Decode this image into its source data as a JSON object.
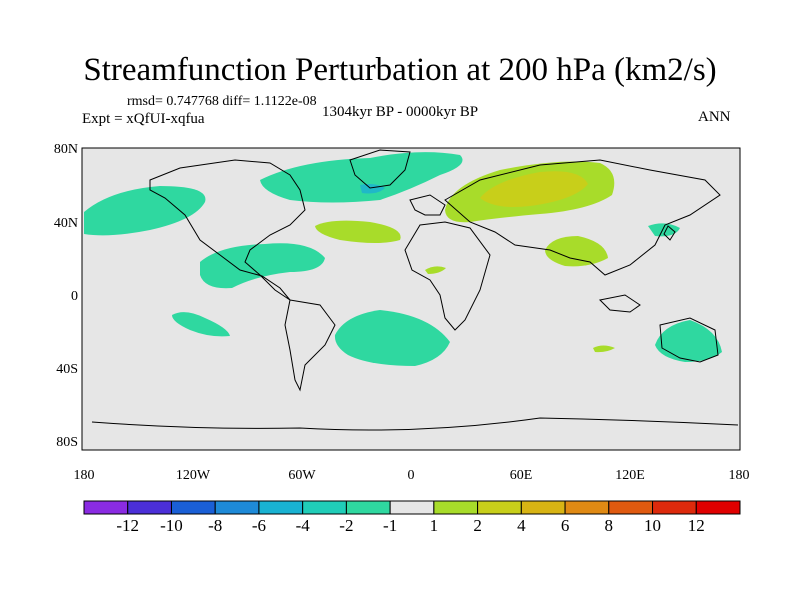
{
  "title": "Streamfunction Perturbation at 200 hPa (km2/s)",
  "stats": "rmsd= 0.747768 diff= 1.1122e-08",
  "experiment": "Expt = xQfUI-xqfua",
  "period": "1304kyr BP - 0000kyr BP",
  "season": "ANN",
  "lat_ticks": [
    "80N",
    "40N",
    "0",
    "40S",
    "80S"
  ],
  "lon_ticks": [
    "180",
    "120W",
    "60W",
    "0",
    "60E",
    "120E",
    "180"
  ],
  "colorbar": {
    "labels": [
      "-12",
      "-10",
      "-8",
      "-6",
      "-4",
      "-2",
      "-1",
      "1",
      "2",
      "4",
      "6",
      "8",
      "10",
      "12"
    ],
    "colors": [
      "#8a2be2",
      "#4b2fd8",
      "#1a5fd6",
      "#1e8ad8",
      "#19b2d2",
      "#20cdb8",
      "#2fd8a0",
      "#e6e6e6",
      "#a8dc2a",
      "#c8cf1a",
      "#d8b414",
      "#e08a14",
      "#e05a10",
      "#dd2a0c",
      "#e00000"
    ]
  },
  "chart_data": {
    "type": "contour_map",
    "variable": "Streamfunction Perturbation at 200 hPa",
    "units": "km2/s",
    "projection": "cylindrical equidistant",
    "lon_range": [
      -180,
      180
    ],
    "lat_range": [
      -90,
      90
    ],
    "anomaly_regions": [
      {
        "name": "North Pacific",
        "lon": -162,
        "lat": 43,
        "level": "-2 to -1"
      },
      {
        "name": "North Atlantic / Greenland",
        "lon": -35,
        "lat": 62,
        "level": "-2 to -1"
      },
      {
        "name": "Labrador Sea minimum",
        "lon": -30,
        "lat": 58,
        "level": "-4 to -2"
      },
      {
        "name": "Gulf of Mexico / Caribbean",
        "lon": -75,
        "lat": 20,
        "level": "-2 to -1"
      },
      {
        "name": "Japan / NW Pacific",
        "lon": 135,
        "lat": 37,
        "level": "-2 to -1"
      },
      {
        "name": "Subtropical SE Pacific",
        "lon": -110,
        "lat": -15,
        "level": "-2 to -1"
      },
      {
        "name": "South Atlantic",
        "lon": -10,
        "lat": -22,
        "level": "-2 to -1"
      },
      {
        "name": "Australia",
        "lon": 150,
        "lat": -25,
        "level": "-2 to -1"
      },
      {
        "name": "Eurasia",
        "lon": 60,
        "lat": 55,
        "level": "1 to 4"
      },
      {
        "name": "Subtropical Atlantic",
        "lon": -25,
        "lat": 35,
        "level": "1 to 2"
      },
      {
        "name": "Tibet / South Asia",
        "lon": 95,
        "lat": 30,
        "level": "1 to 2"
      },
      {
        "name": "Tropical North Africa",
        "lon": 15,
        "lat": 12,
        "level": "1 to 2"
      },
      {
        "name": "Indian Ocean (small)",
        "lon": 105,
        "lat": -25,
        "level": "1 to 2"
      }
    ]
  }
}
